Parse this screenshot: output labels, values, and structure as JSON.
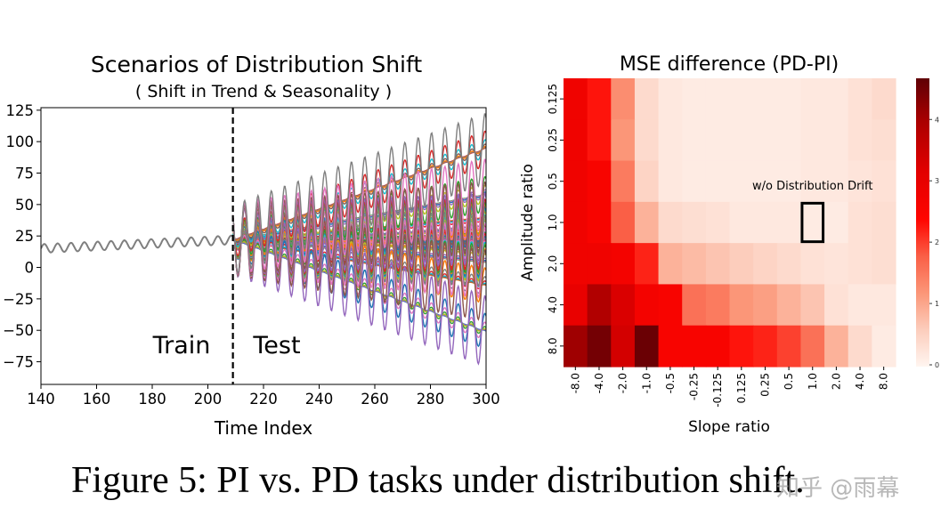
{
  "caption": "Figure 5: PI vs. PD tasks under distribution shift.",
  "watermark": "知乎 @雨幕",
  "chart_data": [
    {
      "type": "line",
      "title": "Scenarios of Distribution Shift",
      "subtitle": "( Shift in Trend & Seasonality )",
      "xlabel": "Time Index",
      "ylabel": "",
      "xlim": [
        140,
        300
      ],
      "ylim": [
        -93,
        127
      ],
      "xticks": [
        "140",
        "160",
        "180",
        "200",
        "220",
        "240",
        "260",
        "280",
        "300"
      ],
      "yticks": [
        "125",
        "100",
        "75",
        "50",
        "25",
        "0",
        "−25",
        "−50",
        "−75"
      ],
      "split_at": 209,
      "annotations": [
        "Train",
        "Test"
      ],
      "grid": false,
      "train_series": {
        "color": "#7f7f7f",
        "start_level": 15,
        "slope": 0.1,
        "amplitude": 3.5,
        "period": 4.8
      },
      "test_series": {
        "slope_ratios": [
          -8,
          -4,
          -2,
          -1,
          -0.5,
          -0.25,
          -0.125,
          0.125,
          0.25,
          0.5,
          1,
          2,
          4,
          8
        ],
        "amplitude_ratios": [
          0.125,
          0.25,
          0.5,
          1,
          2,
          4,
          8
        ],
        "colors": [
          "#1f77b4",
          "#ff7f0e",
          "#2ca02c",
          "#d62728",
          "#9467bd",
          "#8c564b",
          "#e377c2",
          "#7f7f7f",
          "#bcbd22",
          "#17becf"
        ]
      }
    },
    {
      "type": "heatmap",
      "title": "MSE difference (PD-PI)",
      "xlabel": "Slope ratio",
      "ylabel": "Amplitude ratio",
      "x_categories": [
        "-8.0",
        "-4.0",
        "-2.0",
        "-1.0",
        "-0.5",
        "-0.25",
        "-0.125",
        "0.125",
        "0.25",
        "0.5",
        "1.0",
        "2.0",
        "4.0",
        "8.0"
      ],
      "y_categories": [
        "0.125",
        "0.25",
        "0.5",
        "1.0",
        "2.0",
        "4.0",
        "8.0"
      ],
      "values": [
        [
          2.8,
          2.3,
          1.3,
          0.4,
          0.2,
          0.15,
          0.15,
          0.15,
          0.15,
          0.15,
          0.2,
          0.2,
          0.3,
          0.4
        ],
        [
          2.8,
          2.3,
          1.2,
          0.4,
          0.2,
          0.15,
          0.15,
          0.15,
          0.15,
          0.15,
          0.2,
          0.2,
          0.3,
          0.35
        ],
        [
          2.8,
          2.6,
          1.5,
          0.5,
          0.2,
          0.15,
          0.15,
          0.15,
          0.15,
          0.15,
          0.2,
          0.2,
          0.25,
          0.3
        ],
        [
          2.8,
          2.6,
          1.8,
          0.9,
          0.4,
          0.35,
          0.3,
          0.2,
          0.2,
          0.2,
          0.15,
          0.15,
          0.3,
          0.35
        ],
        [
          2.8,
          2.8,
          2.7,
          2.2,
          0.9,
          0.8,
          0.7,
          0.6,
          0.5,
          0.4,
          0.3,
          0.25,
          0.3,
          0.35
        ],
        [
          3.0,
          3.9,
          3.3,
          2.7,
          2.6,
          1.6,
          1.5,
          1.2,
          1.1,
          0.9,
          0.7,
          0.3,
          0.2,
          0.2
        ],
        [
          4.1,
          4.5,
          3.4,
          4.6,
          2.6,
          2.6,
          2.6,
          2.3,
          2.2,
          2.0,
          1.6,
          0.9,
          0.4,
          0.15
        ]
      ],
      "colorbar": {
        "range": [
          0,
          4.7
        ],
        "ticks": [
          "0",
          "1",
          "2",
          "3",
          "4"
        ]
      },
      "annotation": {
        "text": "w/o Distribution Drift",
        "x": "1.0",
        "y": "1.0"
      }
    }
  ]
}
